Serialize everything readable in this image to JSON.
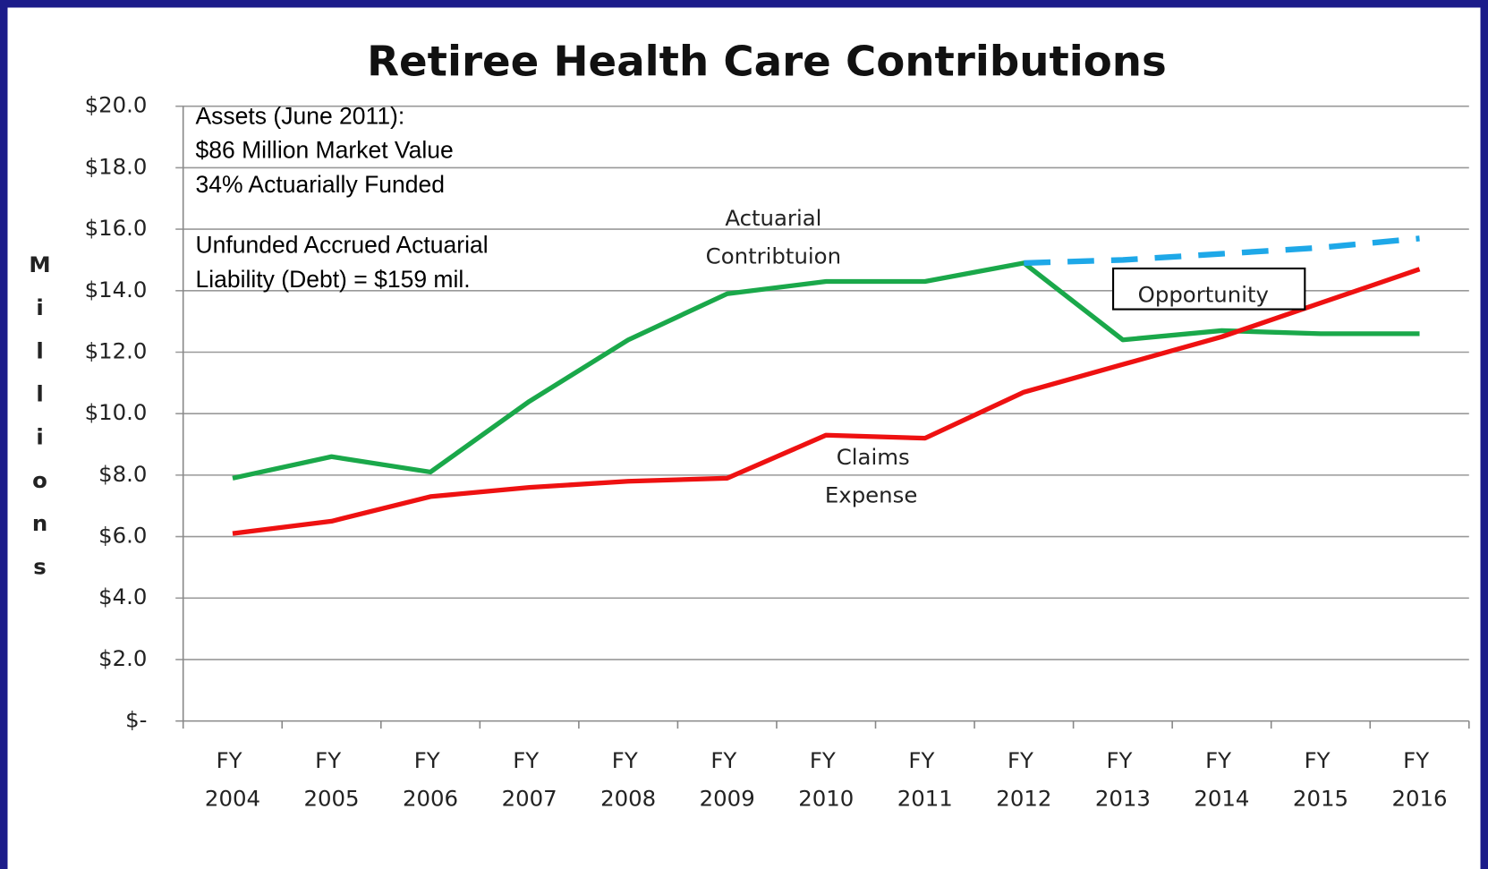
{
  "chart_data": {
    "type": "line",
    "title": "Retiree Health Care Contributions",
    "y_label": "Millions",
    "categories": [
      "FY 2004",
      "FY 2005",
      "FY 2006",
      "FY 2007",
      "FY 2008",
      "FY 2009",
      "FY 2010",
      "FY 2011",
      "FY 2012",
      "FY 2013",
      "FY 2014",
      "FY 2015",
      "FY 2016"
    ],
    "series": [
      {
        "color": "#1aa84a",
        "values": [
          7.9,
          8.6,
          8.1,
          10.4,
          12.4,
          13.9,
          14.3,
          14.3,
          14.9,
          12.4,
          12.7,
          12.6,
          12.6
        ]
      },
      {
        "color": "#ee1111",
        "values": [
          6.1,
          6.5,
          7.3,
          7.6,
          7.8,
          7.9,
          9.3,
          9.2,
          10.7,
          11.6,
          12.5,
          13.6,
          14.7
        ]
      },
      {
        "color": "#1ea8e8",
        "dashed": true,
        "values": [
          null,
          null,
          null,
          null,
          null,
          null,
          null,
          null,
          14.9,
          15.0,
          15.2,
          15.4,
          15.7
        ]
      }
    ],
    "ylim": [
      0,
      20
    ],
    "yticks": [
      {
        "value": 0,
        "label": "$-"
      },
      {
        "value": 2,
        "label": "$2.0"
      },
      {
        "value": 4,
        "label": "$4.0"
      },
      {
        "value": 6,
        "label": "$6.0"
      },
      {
        "value": 8,
        "label": "$8.0"
      },
      {
        "value": 10,
        "label": "$10.0"
      },
      {
        "value": 12,
        "label": "$12.0"
      },
      {
        "value": 14,
        "label": "$14.0"
      },
      {
        "value": 16,
        "label": "$16.0"
      },
      {
        "value": 18,
        "label": "$18.0"
      },
      {
        "value": 20,
        "label": "$20.0"
      }
    ],
    "grid": true,
    "notes": [
      "Assets  (June 2011):",
      "$86 Million Market Value",
      "34% Actuarially Funded",
      "Unfunded Accrued Actuarial",
      "Liability (Debt) = $159 mil."
    ],
    "annotations": [
      "Actuarial",
      "Contribtuion",
      "Claims",
      "Expense",
      "Opportunity"
    ]
  }
}
